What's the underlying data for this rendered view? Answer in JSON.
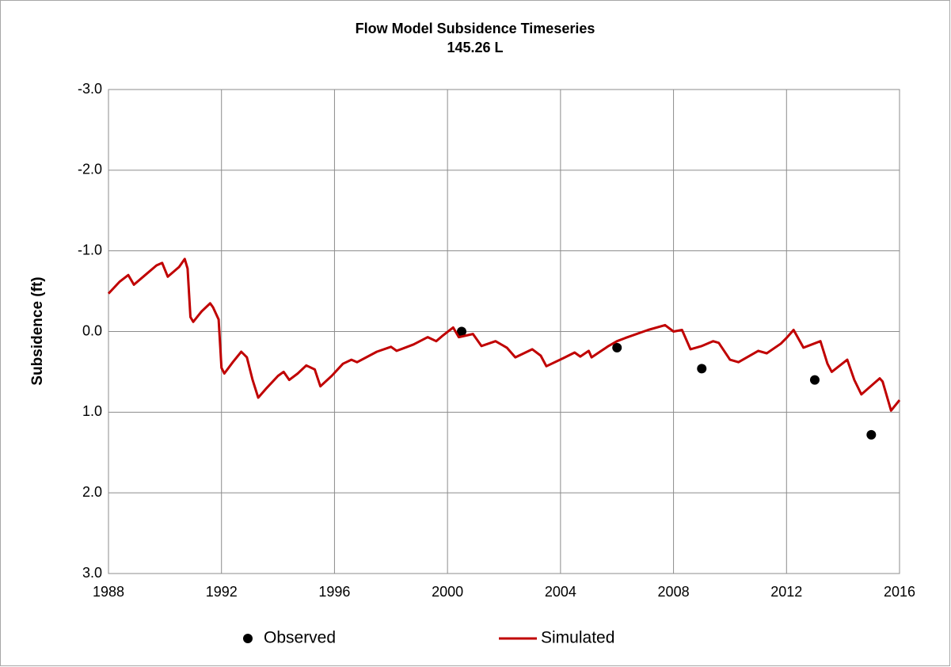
{
  "chart_data": {
    "type": "line",
    "title": "Flow Model Subsidence Timeseries",
    "subtitle": "145.26 L",
    "y_label": "Subsidence (ft)",
    "xlim": [
      1988,
      2016
    ],
    "xticks": [
      1988,
      1992,
      1996,
      2000,
      2004,
      2008,
      2012,
      2016
    ],
    "ylim": [
      -3,
      3
    ],
    "y_inverted": true,
    "yticks": [
      {
        "value": -3,
        "label": "-3.0"
      },
      {
        "value": -2,
        "label": "-2.0"
      },
      {
        "value": -1,
        "label": "-1.0"
      },
      {
        "value": 0,
        "label": "0.0"
      },
      {
        "value": 1,
        "label": "1.0"
      },
      {
        "value": 2,
        "label": "2.0"
      },
      {
        "value": 3,
        "label": "3.0"
      }
    ],
    "grid": true,
    "legend": "bottom",
    "series": [
      {
        "name": "Observed",
        "kind": "scatter",
        "color": "#000000",
        "x": [
          2000.5,
          2006.0,
          2009.0,
          2013.0,
          2015.0
        ],
        "values": [
          0.0,
          0.2,
          0.46,
          0.6,
          1.28
        ]
      },
      {
        "name": "Simulated",
        "kind": "line",
        "color": "#c00000",
        "x": [
          1988.0,
          1988.4,
          1988.7,
          1988.9,
          1989.3,
          1989.7,
          1989.9,
          1990.1,
          1990.5,
          1990.7,
          1990.8,
          1990.9,
          1991.0,
          1991.3,
          1991.6,
          1991.7,
          1991.9,
          1992.0,
          1992.1,
          1992.4,
          1992.7,
          1992.9,
          1993.1,
          1993.3,
          1993.6,
          1994.0,
          1994.2,
          1994.4,
          1994.7,
          1995.0,
          1995.3,
          1995.5,
          1995.9,
          1996.3,
          1996.6,
          1996.8,
          1997.5,
          1998.0,
          1998.2,
          1998.8,
          1999.3,
          1999.6,
          1999.8,
          2000.2,
          2000.4,
          2000.9,
          2001.2,
          2001.7,
          2002.1,
          2002.4,
          2003.0,
          2003.3,
          2003.5,
          2004.1,
          2004.5,
          2004.7,
          2005.0,
          2005.1,
          2005.7,
          2006.0,
          2006.3,
          2007.1,
          2007.7,
          2008.0,
          2008.3,
          2008.6,
          2009.0,
          2009.4,
          2009.6,
          2010.0,
          2010.3,
          2011.0,
          2011.3,
          2011.8,
          2012.0,
          2012.25,
          2012.6,
          2013.2,
          2013.45,
          2013.6,
          2014.15,
          2014.4,
          2014.65,
          2015.3,
          2015.4,
          2015.7,
          2016.0
        ],
        "values": [
          -0.47,
          -0.62,
          -0.7,
          -0.58,
          -0.7,
          -0.82,
          -0.85,
          -0.68,
          -0.8,
          -0.9,
          -0.78,
          -0.18,
          -0.12,
          -0.25,
          -0.35,
          -0.3,
          -0.15,
          0.45,
          0.52,
          0.38,
          0.25,
          0.32,
          0.6,
          0.82,
          0.7,
          0.55,
          0.5,
          0.6,
          0.52,
          0.42,
          0.47,
          0.68,
          0.55,
          0.4,
          0.35,
          0.38,
          0.25,
          0.19,
          0.24,
          0.16,
          0.07,
          0.12,
          0.06,
          -0.05,
          0.07,
          0.03,
          0.18,
          0.12,
          0.2,
          0.32,
          0.22,
          0.3,
          0.43,
          0.33,
          0.26,
          0.31,
          0.24,
          0.32,
          0.18,
          0.12,
          0.08,
          -0.02,
          -0.08,
          0.0,
          -0.02,
          0.22,
          0.18,
          0.12,
          0.14,
          0.35,
          0.38,
          0.24,
          0.27,
          0.15,
          0.08,
          -0.02,
          0.2,
          0.12,
          0.4,
          0.5,
          0.35,
          0.6,
          0.78,
          0.58,
          0.62,
          0.98,
          0.85
        ]
      }
    ]
  }
}
